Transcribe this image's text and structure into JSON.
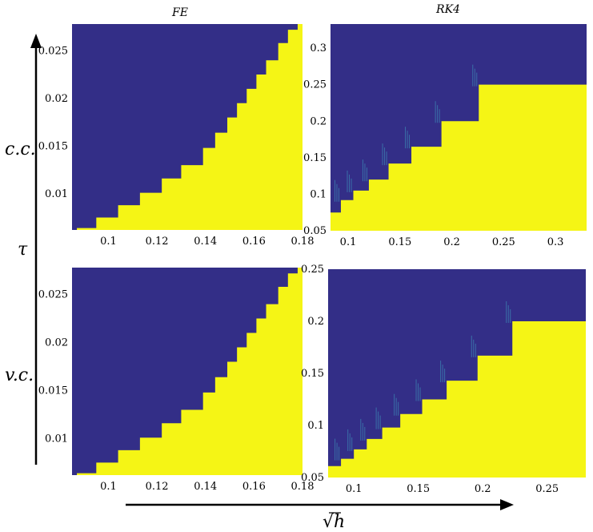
{
  "figure": {
    "column_titles": [
      "FE",
      "RK4"
    ],
    "row_labels": [
      "c.c.",
      "v.c."
    ],
    "y_axis_label": "τ",
    "x_axis_label": "√h",
    "colors": {
      "unstable": "#332e87",
      "stable": "#f5f515",
      "streak": "#3a6fa8"
    }
  },
  "chart_data": [
    {
      "type": "heatmap",
      "title": "FE",
      "row_label": "c.c.",
      "xlim": [
        0.085,
        0.18
      ],
      "ylim": [
        0.0062,
        0.0278
      ],
      "xticks": [
        0.1,
        0.12,
        0.14,
        0.16,
        0.18
      ],
      "yticks": [
        0.01,
        0.015,
        0.02,
        0.025
      ],
      "xtick_labels": [
        "0.1",
        "0.12",
        "0.14",
        "0.16",
        "0.18"
      ],
      "ytick_labels": [
        "0.01",
        "0.015",
        "0.02",
        "0.025"
      ],
      "boundary": {
        "x": [
          0.087,
          0.095,
          0.104,
          0.113,
          0.122,
          0.13,
          0.139,
          0.144,
          0.149,
          0.153,
          0.157,
          0.161,
          0.165,
          0.17,
          0.174,
          0.178
        ],
        "tau": [
          0.0064,
          0.0075,
          0.0088,
          0.0101,
          0.0116,
          0.013,
          0.0148,
          0.0164,
          0.018,
          0.0195,
          0.021,
          0.0225,
          0.024,
          0.0258,
          0.0272,
          0.0278
        ]
      }
    },
    {
      "type": "heatmap",
      "title": "RK4",
      "row_label": "c.c.",
      "xlim": [
        0.083,
        0.33
      ],
      "ylim": [
        0.05,
        0.333
      ],
      "xticks": [
        0.1,
        0.15,
        0.2,
        0.25,
        0.3
      ],
      "yticks": [
        0.05,
        0.1,
        0.15,
        0.2,
        0.25,
        0.3
      ],
      "xtick_labels": [
        "0.1",
        "0.15",
        "0.2",
        "0.25",
        "0.3"
      ],
      "ytick_labels": [
        "0.05",
        "0.1",
        "0.15",
        "0.2",
        "0.25",
        "0.3"
      ],
      "steps": {
        "x_edges": [
          0.083,
          0.093,
          0.105,
          0.12,
          0.139,
          0.161,
          0.19,
          0.226,
          0.282
        ],
        "tau_levels": [
          0.075,
          0.092,
          0.105,
          0.12,
          0.142,
          0.165,
          0.2,
          0.25
        ]
      }
    },
    {
      "type": "heatmap",
      "title": "",
      "row_label": "v.c.",
      "xlim": [
        0.085,
        0.18
      ],
      "ylim": [
        0.0062,
        0.0278
      ],
      "xticks": [
        0.1,
        0.12,
        0.14,
        0.16,
        0.18
      ],
      "yticks": [
        0.01,
        0.015,
        0.02,
        0.025
      ],
      "xtick_labels": [
        "0.1",
        "0.12",
        "0.14",
        "0.16",
        "0.18"
      ],
      "ytick_labels": [
        "0.01",
        "0.015",
        "0.02",
        "0.025"
      ],
      "boundary": {
        "x": [
          0.087,
          0.095,
          0.104,
          0.113,
          0.122,
          0.13,
          0.139,
          0.144,
          0.149,
          0.153,
          0.157,
          0.161,
          0.165,
          0.17,
          0.174,
          0.178
        ],
        "tau": [
          0.0064,
          0.0075,
          0.0088,
          0.0101,
          0.0116,
          0.013,
          0.0148,
          0.0164,
          0.018,
          0.0195,
          0.021,
          0.0225,
          0.024,
          0.0258,
          0.0272,
          0.0278
        ]
      }
    },
    {
      "type": "heatmap",
      "title": "",
      "row_label": "v.c.",
      "xlim": [
        0.08,
        0.28
      ],
      "ylim": [
        0.05,
        0.25
      ],
      "xticks": [
        0.1,
        0.15,
        0.2,
        0.25
      ],
      "yticks": [
        0.05,
        0.1,
        0.15,
        0.2,
        0.25
      ],
      "xtick_labels": [
        "0.1",
        "0.15",
        "0.2",
        "0.25"
      ],
      "ytick_labels": [
        "0.05",
        "0.1",
        "0.15",
        "0.2",
        "0.25"
      ],
      "steps": {
        "x_edges": [
          0.08,
          0.09,
          0.1,
          0.11,
          0.122,
          0.136,
          0.153,
          0.172,
          0.196,
          0.223,
          0.239
        ],
        "tau_levels": [
          0.061,
          0.068,
          0.077,
          0.087,
          0.098,
          0.111,
          0.125,
          0.143,
          0.167,
          0.2
        ]
      }
    }
  ]
}
